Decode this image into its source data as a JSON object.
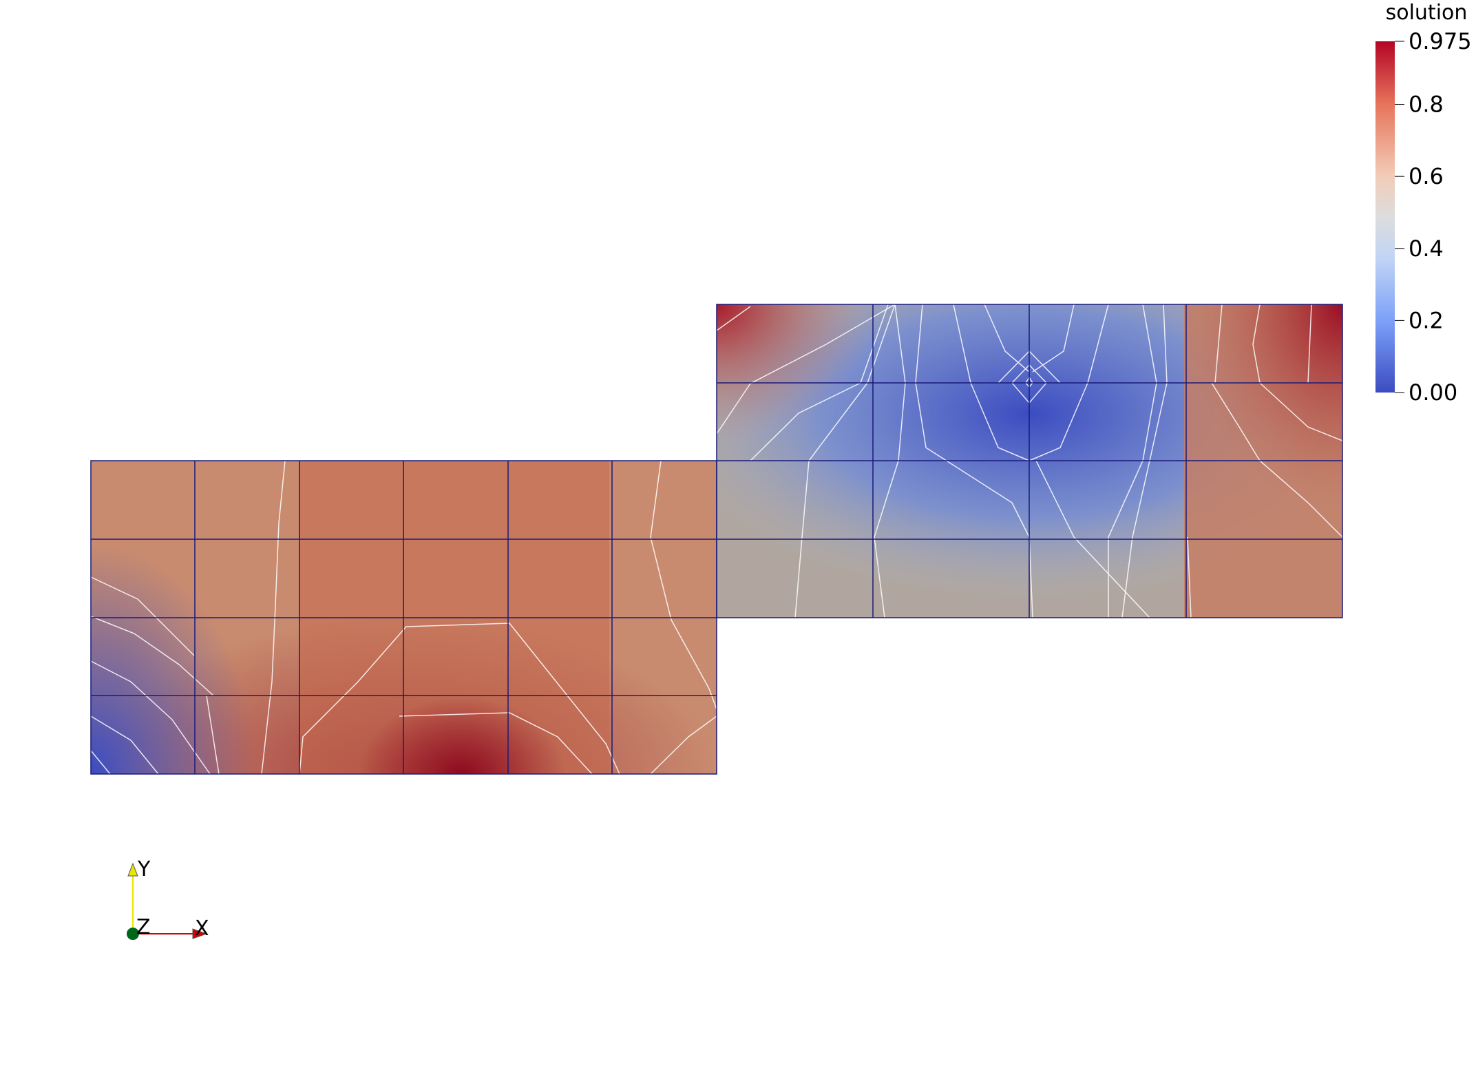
{
  "legend": {
    "title": "solution",
    "ticks": [
      "0.975",
      "0.8",
      "0.6",
      "0.4",
      "0.2",
      "0.00"
    ],
    "tick_values": [
      0.975,
      0.8,
      0.6,
      0.4,
      0.2,
      0.0
    ],
    "range": [
      0.0,
      0.975
    ]
  },
  "colormap": {
    "name": "cool-to-warm",
    "low": "#3b4cc0",
    "mid": "#dddddd",
    "high": "#b40426",
    "top": "#8e0a1f"
  },
  "axes_triad": {
    "x_label": "X",
    "y_label": "Y",
    "z_label": "Z",
    "x_color": "#d40000",
    "y_color": "#e6e600",
    "z_color": "#00661a"
  },
  "mesh": {
    "edge_color": "#1a1a7a",
    "contour_color": "#ffffff"
  }
}
